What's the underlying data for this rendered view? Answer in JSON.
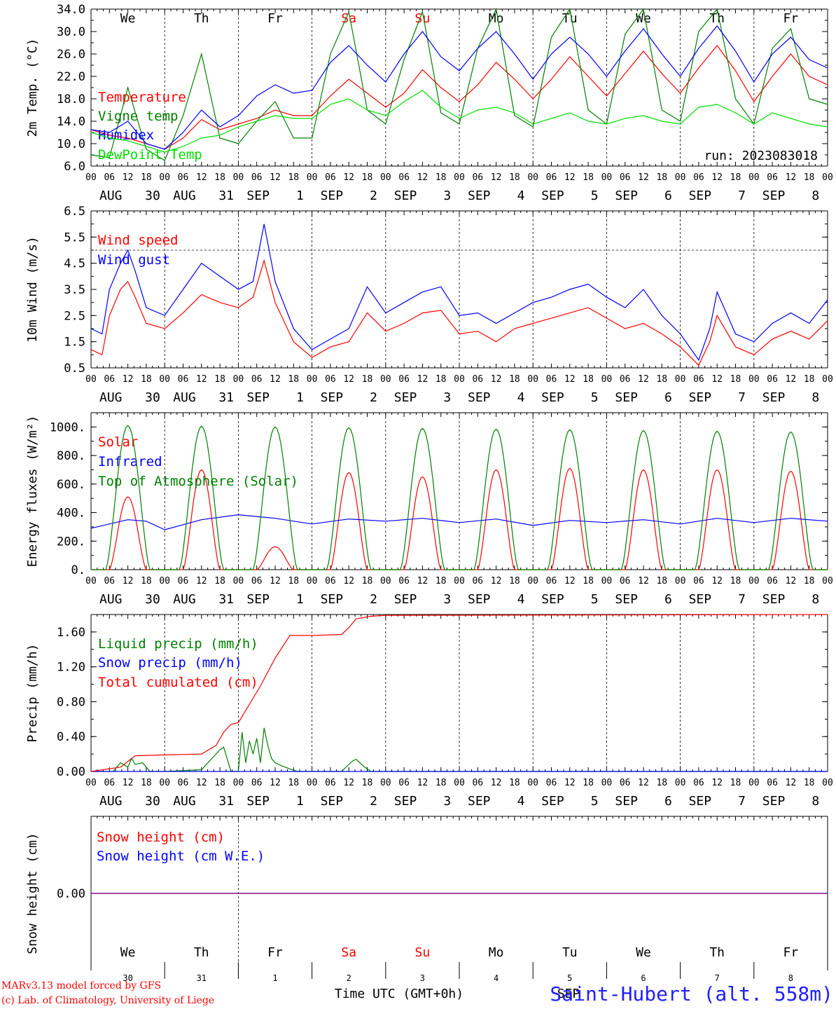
{
  "footer": {
    "model": "MARv3.13 model forced by GFS",
    "lab": "(c) Lab. of Climatology, University of Liege",
    "station": "Saint-Hubert (alt. 558m)",
    "time_label": "Time UTC (GMT+0h)",
    "bottom_day_numbers": [
      "30",
      "31",
      "1",
      "2",
      "3",
      "4",
      "5",
      "6",
      "7",
      "8"
    ],
    "extra_sep": "SEP"
  },
  "colors": {
    "red": "#ff0000",
    "green": "#008000",
    "blue": "#0000ff",
    "lightgreen": "#00e000",
    "purple": "#800080",
    "station": "#2020ff"
  },
  "x_axis": {
    "hour_ticks": [
      "00",
      "06",
      "12",
      "18"
    ],
    "end_tick": "00",
    "day_labels": [
      {
        "month": "AUG",
        "day": "30"
      },
      {
        "month": "AUG",
        "day": "31"
      },
      {
        "month": "SEP",
        "day": "1"
      },
      {
        "month": "SEP",
        "day": "2"
      },
      {
        "month": "SEP",
        "day": "3"
      },
      {
        "month": "SEP",
        "day": "4"
      },
      {
        "month": "SEP",
        "day": "5"
      },
      {
        "month": "SEP",
        "day": "6"
      },
      {
        "month": "SEP",
        "day": "7"
      },
      {
        "month": "SEP",
        "day": "8"
      }
    ],
    "weekdays": [
      "We",
      "Th",
      "Fr",
      "Sa",
      "Su",
      "Mo",
      "Tu",
      "We",
      "Th",
      "Fr"
    ],
    "weekend_days": [
      3,
      4
    ]
  },
  "chart_data": [
    {
      "type": "line",
      "ylabel": "2m Temp. (°C)",
      "ylim": [
        6.0,
        34.0
      ],
      "yticks": [
        "6.0",
        "10.0",
        "14.0",
        "18.0",
        "22.0",
        "26.0",
        "30.0",
        "34.0"
      ],
      "annotation": "run: 2023083018",
      "x_unit": "day index (0 = AUG 30 00 UTC)",
      "series": [
        {
          "name": "Temperature",
          "color": "red",
          "x": [
            0,
            0.25,
            0.5,
            0.75,
            1,
            1.25,
            1.5,
            1.75,
            2,
            2.25,
            2.5,
            2.75,
            3,
            3.25,
            3.5,
            3.75,
            4,
            4.25,
            4.5,
            4.75,
            5,
            5.25,
            5.5,
            5.75,
            6,
            6.25,
            6.5,
            6.75,
            7,
            7.25,
            7.5,
            7.75,
            8,
            8.25,
            8.5,
            8.75,
            9,
            9.25,
            9.5,
            9.75,
            10
          ],
          "values": [
            12.5,
            11.5,
            11.0,
            10.0,
            9.0,
            11.0,
            14.3,
            12.5,
            13.5,
            14.5,
            16.0,
            15.0,
            15.0,
            18.5,
            21.5,
            19.0,
            16.5,
            19.0,
            23.2,
            20.0,
            17.5,
            20.5,
            24.5,
            21.5,
            18.0,
            21.5,
            25.5,
            22.0,
            18.5,
            22.5,
            26.5,
            22.5,
            19.0,
            23.5,
            27.5,
            23.0,
            17.5,
            22.0,
            26.0,
            22.0,
            20.5
          ]
        },
        {
          "name": "Vigne temp",
          "color": "green",
          "x": [
            0,
            0.25,
            0.5,
            0.75,
            1,
            1.25,
            1.5,
            1.75,
            2,
            2.25,
            2.5,
            2.75,
            3,
            3.25,
            3.5,
            3.75,
            4,
            4.25,
            4.5,
            4.75,
            5,
            5.25,
            5.5,
            5.75,
            6,
            6.25,
            6.5,
            6.75,
            7,
            7.25,
            7.5,
            7.75,
            8,
            8.25,
            8.5,
            8.75,
            9,
            9.25,
            9.5,
            9.75,
            10
          ],
          "values": [
            8.0,
            7.5,
            20.0,
            9.0,
            7.0,
            15.0,
            26.0,
            11.0,
            10.0,
            14.0,
            17.5,
            11.0,
            11.0,
            26.0,
            33.5,
            16.0,
            13.5,
            25.0,
            33.5,
            15.5,
            13.5,
            27.0,
            34.0,
            15.0,
            13.0,
            29.0,
            34.0,
            16.0,
            13.5,
            29.5,
            34.0,
            16.0,
            14.0,
            30.0,
            34.0,
            18.0,
            13.5,
            27.0,
            30.5,
            18.0,
            17.0
          ]
        },
        {
          "name": "Humidex",
          "color": "blue",
          "x": [
            0,
            0.25,
            0.5,
            0.75,
            1,
            1.25,
            1.5,
            1.75,
            2,
            2.25,
            2.5,
            2.75,
            3,
            3.25,
            3.5,
            3.75,
            4,
            4.25,
            4.5,
            4.75,
            5,
            5.25,
            5.5,
            5.75,
            6,
            6.25,
            6.5,
            6.75,
            7,
            7.25,
            7.5,
            7.75,
            8,
            8.25,
            8.5,
            8.75,
            9,
            9.25,
            9.5,
            9.75,
            10
          ],
          "values": [
            12.5,
            12.0,
            14.0,
            10.0,
            9.0,
            12.0,
            16.0,
            13.0,
            15.0,
            18.5,
            20.5,
            19.0,
            19.5,
            24.5,
            27.5,
            24.0,
            21.0,
            26.0,
            30.0,
            25.5,
            23.0,
            27.0,
            30.0,
            26.0,
            21.5,
            26.0,
            29.0,
            26.0,
            22.0,
            26.5,
            30.5,
            26.0,
            22.0,
            27.0,
            31.0,
            26.5,
            21.0,
            26.0,
            29.0,
            25.0,
            23.5
          ]
        },
        {
          "name": "DewPoint Temp",
          "color": "lightgreen",
          "x": [
            0,
            0.25,
            0.5,
            0.75,
            1,
            1.25,
            1.5,
            1.75,
            2,
            2.25,
            2.5,
            2.75,
            3,
            3.25,
            3.5,
            3.75,
            4,
            4.25,
            4.5,
            4.75,
            5,
            5.25,
            5.5,
            5.75,
            6,
            6.25,
            6.5,
            6.75,
            7,
            7.25,
            7.5,
            7.75,
            8,
            8.25,
            8.5,
            8.75,
            9,
            9.25,
            9.5,
            9.75,
            10
          ],
          "values": [
            12.0,
            11.0,
            10.5,
            9.5,
            8.5,
            9.5,
            11.0,
            11.5,
            13.0,
            14.0,
            15.0,
            14.5,
            14.5,
            17.0,
            18.0,
            16.0,
            15.0,
            17.5,
            19.5,
            16.5,
            14.5,
            16.0,
            16.5,
            15.5,
            13.5,
            14.5,
            15.5,
            14.0,
            13.5,
            14.5,
            15.0,
            14.0,
            13.5,
            16.5,
            17.0,
            15.5,
            13.5,
            15.5,
            14.5,
            13.5,
            13.0
          ]
        }
      ]
    },
    {
      "type": "line",
      "ylabel": "10m Wind (m/s)",
      "ylim": [
        0.5,
        6.5
      ],
      "yticks": [
        "0.5",
        "1.5",
        "2.5",
        "3.5",
        "4.5",
        "5.5",
        "6.5"
      ],
      "reference_line": 5.0,
      "series": [
        {
          "name": "Wind speed",
          "color": "red",
          "x": [
            0,
            0.15,
            0.25,
            0.4,
            0.5,
            0.6,
            0.75,
            1,
            1.25,
            1.5,
            1.75,
            2,
            2.2,
            2.35,
            2.5,
            2.75,
            3,
            3.25,
            3.5,
            3.75,
            4,
            4.25,
            4.5,
            4.75,
            5,
            5.25,
            5.5,
            5.75,
            6,
            6.25,
            6.5,
            6.75,
            7,
            7.25,
            7.5,
            7.75,
            8,
            8.25,
            8.4,
            8.5,
            8.75,
            9,
            9.25,
            9.5,
            9.75,
            10
          ],
          "values": [
            1.2,
            1.0,
            2.5,
            3.5,
            3.8,
            3.2,
            2.2,
            2.0,
            2.6,
            3.3,
            3.0,
            2.8,
            3.2,
            4.6,
            3.0,
            1.5,
            0.9,
            1.3,
            1.5,
            2.6,
            1.9,
            2.2,
            2.6,
            2.7,
            1.8,
            1.9,
            1.5,
            2.0,
            2.2,
            2.4,
            2.6,
            2.8,
            2.4,
            2.0,
            2.2,
            1.8,
            1.3,
            0.6,
            1.5,
            2.5,
            1.3,
            1.0,
            1.6,
            1.9,
            1.6,
            2.3
          ]
        },
        {
          "name": "Wind gust",
          "color": "blue",
          "x": [
            0,
            0.15,
            0.25,
            0.4,
            0.5,
            0.6,
            0.75,
            1,
            1.25,
            1.5,
            1.75,
            2,
            2.2,
            2.35,
            2.5,
            2.75,
            3,
            3.25,
            3.5,
            3.75,
            4,
            4.25,
            4.5,
            4.75,
            5,
            5.25,
            5.5,
            5.75,
            6,
            6.25,
            6.5,
            6.75,
            7,
            7.25,
            7.5,
            7.75,
            8,
            8.25,
            8.4,
            8.5,
            8.75,
            9,
            9.25,
            9.5,
            9.75,
            10
          ],
          "values": [
            2.0,
            1.8,
            3.5,
            4.5,
            5.0,
            4.2,
            2.8,
            2.5,
            3.5,
            4.5,
            4.0,
            3.5,
            3.8,
            6.0,
            3.8,
            2.0,
            1.2,
            1.6,
            2.0,
            3.6,
            2.6,
            3.0,
            3.4,
            3.6,
            2.5,
            2.6,
            2.2,
            2.6,
            3.0,
            3.2,
            3.5,
            3.7,
            3.2,
            2.8,
            3.5,
            2.5,
            1.8,
            0.8,
            2.0,
            3.4,
            1.8,
            1.5,
            2.2,
            2.6,
            2.2,
            3.1
          ]
        }
      ]
    },
    {
      "type": "line",
      "ylabel": "Energy fluxes (W/m²)",
      "ylim": [
        0,
        1100
      ],
      "yticks": [
        "0.",
        "200.",
        "400.",
        "600.",
        "800.",
        "1000."
      ],
      "series": [
        {
          "name": "Solar",
          "color": "red",
          "peaks": [
            510,
            700,
            160,
            680,
            650,
            700,
            710,
            700,
            700,
            690
          ]
        },
        {
          "name": "Infrared",
          "color": "blue",
          "x": [
            0,
            0.5,
            0.75,
            1,
            1.5,
            2,
            2.5,
            3,
            3.5,
            4,
            4.5,
            5,
            5.5,
            6,
            6.5,
            7,
            7.5,
            8,
            8.5,
            9,
            9.5,
            10
          ],
          "values": [
            290,
            350,
            340,
            280,
            350,
            385,
            360,
            320,
            355,
            340,
            360,
            330,
            355,
            310,
            345,
            330,
            350,
            320,
            360,
            330,
            360,
            340
          ]
        },
        {
          "name": "Top of Atmosphere (Solar)",
          "color": "green",
          "peaks": [
            1010,
            1005,
            1000,
            995,
            990,
            985,
            980,
            975,
            970,
            965
          ]
        }
      ]
    },
    {
      "type": "line",
      "ylabel": "Precip (mm/h)",
      "ylim": [
        0.0,
        1.8
      ],
      "yticks": [
        "0.00",
        "0.40",
        "0.80",
        "1.20",
        "1.60"
      ],
      "series": [
        {
          "name": "Liquid precip (mm/h)",
          "color": "green",
          "x": [
            0,
            0.3,
            0.4,
            0.5,
            0.55,
            0.6,
            0.7,
            0.8,
            1.0,
            1.5,
            1.75,
            1.8,
            1.9,
            2.0,
            2.05,
            2.1,
            2.15,
            2.2,
            2.25,
            2.3,
            2.35,
            2.4,
            2.45,
            2.5,
            2.6,
            2.7,
            2.8,
            3.0,
            3.4,
            3.5,
            3.55,
            3.6,
            3.65,
            3.7,
            3.8,
            4.0,
            10
          ],
          "values": [
            0,
            0,
            0.1,
            0.05,
            0.15,
            0.08,
            0.1,
            0,
            0,
            0.02,
            0.25,
            0.28,
            0,
            0,
            0.45,
            0.1,
            0.35,
            0.2,
            0.38,
            0.1,
            0.5,
            0.3,
            0.15,
            0.1,
            0.06,
            0.03,
            0,
            0,
            0,
            0.08,
            0.12,
            0.14,
            0.1,
            0.06,
            0,
            0,
            0
          ]
        },
        {
          "name": "Snow precip (mm/h)",
          "color": "blue",
          "x": [
            0,
            10
          ],
          "values": [
            0,
            0
          ]
        },
        {
          "name": "Total cumulated (cm)",
          "color": "red",
          "x": [
            0,
            0.4,
            0.6,
            1.0,
            1.5,
            1.7,
            1.8,
            1.9,
            2.0,
            2.1,
            2.3,
            2.5,
            2.7,
            3.0,
            3.4,
            3.5,
            3.6,
            3.8,
            4.0,
            10
          ],
          "values": [
            0,
            0.05,
            0.18,
            0.19,
            0.2,
            0.3,
            0.45,
            0.54,
            0.56,
            0.7,
            0.98,
            1.3,
            1.56,
            1.56,
            1.57,
            1.65,
            1.75,
            1.78,
            1.79,
            1.8
          ]
        }
      ]
    },
    {
      "type": "line",
      "ylabel": "Snow height (cm)",
      "ylim": [
        -1,
        1
      ],
      "yticks": [
        "0.00"
      ],
      "series": [
        {
          "name": "Snow height (cm)",
          "color": "red",
          "x": [
            0,
            10
          ],
          "values": [
            0,
            0
          ]
        },
        {
          "name": "Snow height (cm W.E.)",
          "color": "blue",
          "x": [
            0,
            10
          ],
          "values": [
            0,
            0
          ]
        }
      ]
    }
  ]
}
